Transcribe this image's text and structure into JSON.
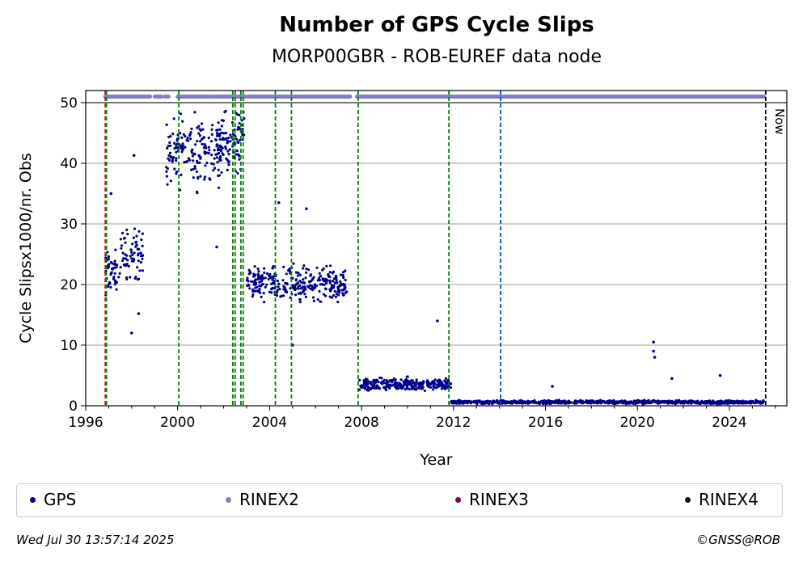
{
  "chart_data": {
    "type": "scatter",
    "title": "Number of GPS Cycle Slips",
    "subtitle": "MORP00GBR - ROB-EUREF data node",
    "xlabel": "Year",
    "ylabel": "Cycle Slipsx1000/nr. Obs",
    "xlim": [
      1996,
      2026.5
    ],
    "ylim": [
      0,
      52
    ],
    "x_ticks": [
      1996,
      2000,
      2004,
      2008,
      2012,
      2016,
      2020,
      2024
    ],
    "y_ticks": [
      0,
      10,
      20,
      30,
      40,
      50
    ],
    "grid": "horizontal",
    "now_label": "Now",
    "now_x": 2025.58,
    "series": [
      {
        "name": "GPS",
        "color": "#00008b",
        "segments": [
          {
            "x_start": 1996.8,
            "x_end": 1997.5,
            "y_mean": 22,
            "y_spread": 5
          },
          {
            "x_start": 1997.5,
            "x_end": 1998.5,
            "y_mean": 25,
            "y_spread": 6
          },
          {
            "x_start": 1999.5,
            "x_end": 2002.0,
            "y_mean": 42,
            "y_spread": 8
          },
          {
            "x_start": 2001.6,
            "x_end": 2002.9,
            "y_mean": 44,
            "y_spread": 7
          },
          {
            "x_start": 2003.0,
            "x_end": 2007.4,
            "y_mean": 20,
            "y_spread": 4
          },
          {
            "x_start": 2007.9,
            "x_end": 2011.9,
            "y_mean": 3.5,
            "y_spread": 1.5
          },
          {
            "x_start": 2011.9,
            "x_end": 2025.5,
            "y_mean": 0.6,
            "y_spread": 0.4
          }
        ],
        "outliers": [
          {
            "x": 2020.7,
            "y": 10.5
          },
          {
            "x": 2020.7,
            "y": 9
          },
          {
            "x": 2020.75,
            "y": 8
          },
          {
            "x": 2011.3,
            "y": 14
          },
          {
            "x": 2005.0,
            "y": 10
          },
          {
            "x": 2004.4,
            "y": 33.5
          },
          {
            "x": 2005.6,
            "y": 32.5
          },
          {
            "x": 1998.1,
            "y": 41.3
          },
          {
            "x": 1997.1,
            "y": 35
          },
          {
            "x": 2021.5,
            "y": 4.5
          },
          {
            "x": 2023.6,
            "y": 5
          },
          {
            "x": 2016.3,
            "y": 3.2
          },
          {
            "x": 1998.0,
            "y": 12
          },
          {
            "x": 1998.3,
            "y": 15.2
          },
          {
            "x": 2001.7,
            "y": 26.2
          }
        ]
      },
      {
        "name": "RINEX2",
        "color": "#8080c0",
        "y": 51,
        "x_ranges": [
          [
            1996.85,
            1998.8
          ],
          [
            1999.0,
            1999.3
          ],
          [
            1999.45,
            1999.6
          ],
          [
            2000.0,
            2001.4
          ],
          [
            2001.5,
            2003.0
          ],
          [
            2003.1,
            2007.5
          ],
          [
            2007.8,
            2025.5
          ]
        ]
      },
      {
        "name": "RINEX3",
        "color": "#800060"
      },
      {
        "name": "RINEX4",
        "color": "#200010"
      }
    ],
    "vertical_lines": [
      {
        "x": 1996.85,
        "color": "#ff0000",
        "style": "dashed"
      },
      {
        "x": 1996.9,
        "color": "#008000",
        "style": "dashed"
      },
      {
        "x": 2000.05,
        "color": "#008000",
        "style": "dashed"
      },
      {
        "x": 2002.4,
        "color": "#008000",
        "style": "dashed"
      },
      {
        "x": 2002.5,
        "color": "#008000",
        "style": "dashed"
      },
      {
        "x": 2002.75,
        "color": "#008000",
        "style": "dashed"
      },
      {
        "x": 2002.85,
        "color": "#008000",
        "style": "dashed"
      },
      {
        "x": 2004.25,
        "color": "#008000",
        "style": "dashed"
      },
      {
        "x": 2004.95,
        "color": "#008000",
        "style": "dashed"
      },
      {
        "x": 2007.85,
        "color": "#008000",
        "style": "dashed"
      },
      {
        "x": 2011.8,
        "color": "#008000",
        "style": "dashed"
      },
      {
        "x": 2014.05,
        "color": "#0050c0",
        "style": "dashed"
      },
      {
        "x": 2025.58,
        "color": "#000000",
        "style": "dashed"
      }
    ],
    "legend": [
      "GPS",
      "RINEX2",
      "RINEX3",
      "RINEX4"
    ],
    "legend_location": "bottom"
  },
  "footer": {
    "timestamp": "Wed Jul 30 13:57:14 2025",
    "credit": "©GNSS@ROB"
  }
}
